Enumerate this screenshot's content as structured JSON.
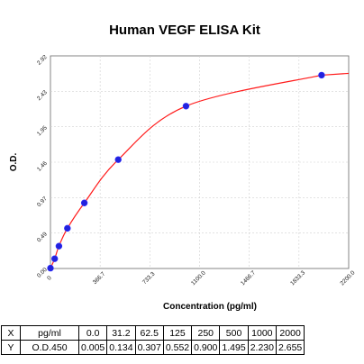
{
  "chart_data": {
    "type": "line",
    "title": "Human VEGF ELISA Kit",
    "xlabel": "Concentration (pg/ml)",
    "ylabel": "O.D.",
    "xlim": [
      0,
      2000
    ],
    "ylim": [
      0,
      2.92
    ],
    "x_ticks": [
      "0",
      "366.7",
      "733.3",
      "1100.0",
      "1466.7",
      "1833.3",
      "2200.0"
    ],
    "y_ticks": [
      "0.00",
      "0.49",
      "0.97",
      "1.46",
      "1.95",
      "2.43",
      "2.92"
    ],
    "series": [
      {
        "x": [
          0,
          31.2,
          62.5,
          125,
          250,
          500,
          1000,
          2000
        ],
        "values": [
          0.005,
          0.134,
          0.307,
          0.552,
          0.9,
          1.495,
          2.23,
          2.655
        ]
      }
    ],
    "fit_color": "#ff1a1a",
    "point_color": "#2222dd",
    "grid": true
  },
  "table": {
    "rows": [
      {
        "label": "X",
        "unit": "pg/ml",
        "values": [
          "0.0",
          "31.2",
          "62.5",
          "125",
          "250",
          "500",
          "1000",
          "2000"
        ]
      },
      {
        "label": "Y",
        "unit": "O.D.450",
        "values": [
          "0.005",
          "0.134",
          "0.307",
          "0.552",
          "0.900",
          "1.495",
          "2.230",
          "2.655"
        ]
      }
    ]
  }
}
